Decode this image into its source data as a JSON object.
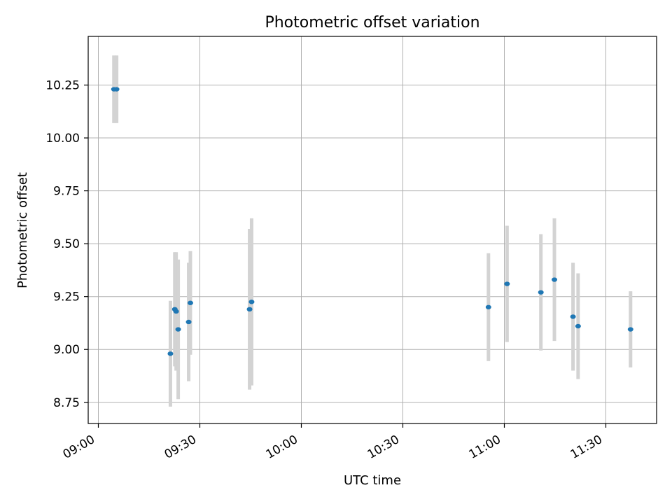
{
  "chart_data": {
    "type": "scatter",
    "title": "Photometric offset variation",
    "xlabel": "UTC time",
    "ylabel": "Photometric offset",
    "x_ticks": [
      "09:00",
      "09:30",
      "10:00",
      "10:30",
      "11:00",
      "11:30"
    ],
    "y_ticks": [
      "8.75",
      "9.00",
      "9.25",
      "9.50",
      "9.75",
      "10.00",
      "10.25"
    ],
    "xlim": [
      "08:57",
      "11:45"
    ],
    "ylim": [
      8.65,
      10.48
    ],
    "grid": true,
    "colors": {
      "point": "#1f77b4",
      "errorbar": "#d3d3d3",
      "grid": "#b0b0b0"
    },
    "points": [
      {
        "x": "09:04.6",
        "y": 10.23,
        "err": 0.16
      },
      {
        "x": "09:05.4",
        "y": 10.23,
        "err": 0.16
      },
      {
        "x": "09:21.3",
        "y": 8.98,
        "err": 0.25
      },
      {
        "x": "09:22.6",
        "y": 9.19,
        "err": 0.27
      },
      {
        "x": "09:23.0",
        "y": 9.18,
        "err": 0.28
      },
      {
        "x": "09:23.6",
        "y": 9.095,
        "err": 0.33
      },
      {
        "x": "09:26.7",
        "y": 9.13,
        "err": 0.28
      },
      {
        "x": "09:27.2",
        "y": 9.22,
        "err": 0.245
      },
      {
        "x": "09:44.7",
        "y": 9.19,
        "err": 0.38
      },
      {
        "x": "09:45.3",
        "y": 9.225,
        "err": 0.395
      },
      {
        "x": "10:55.3",
        "y": 9.2,
        "err": 0.255
      },
      {
        "x": "11:00.8",
        "y": 9.31,
        "err": 0.275
      },
      {
        "x": "11:10.8",
        "y": 9.27,
        "err": 0.275
      },
      {
        "x": "11:14.8",
        "y": 9.33,
        "err": 0.29
      },
      {
        "x": "11:20.3",
        "y": 9.155,
        "err": 0.255
      },
      {
        "x": "11:21.8",
        "y": 9.11,
        "err": 0.25
      },
      {
        "x": "11:37.3",
        "y": 9.095,
        "err": 0.18
      }
    ]
  }
}
